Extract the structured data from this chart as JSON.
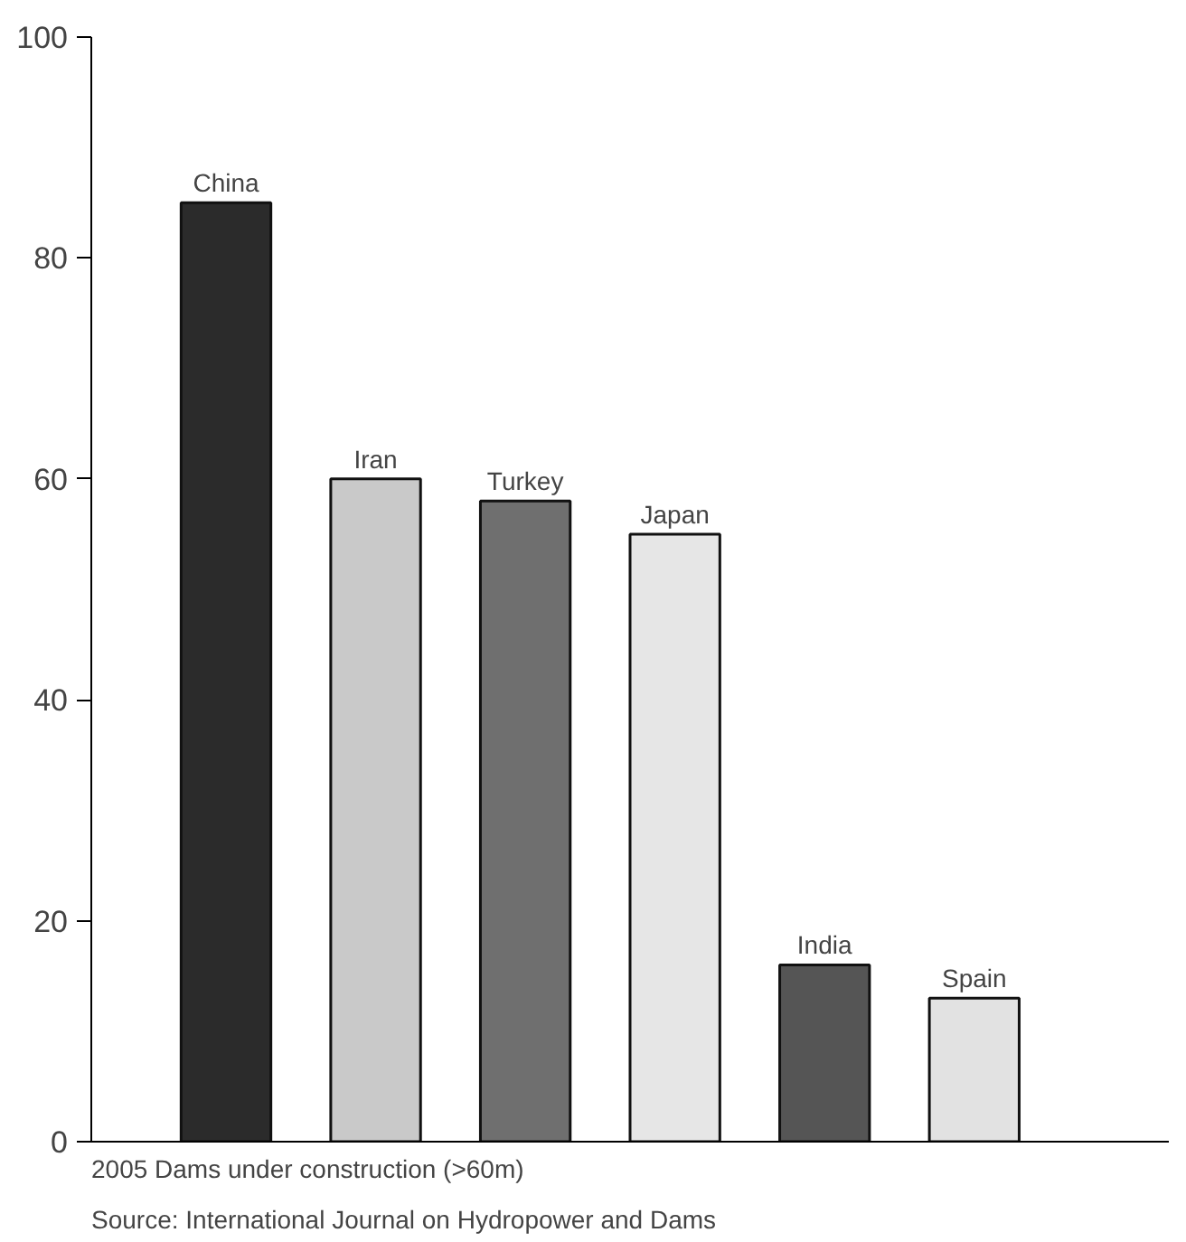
{
  "chart_data": {
    "type": "bar",
    "categories": [
      "China",
      "Iran",
      "Turkey",
      "Japan",
      "India",
      "Spain"
    ],
    "values": [
      85,
      60,
      58,
      55,
      16,
      13
    ],
    "colors": [
      "#2b2b2b",
      "#c9c9c9",
      "#6f6f6f",
      "#e6e6e6",
      "#555555",
      "#e2e2e2"
    ],
    "ylim": [
      0,
      100
    ],
    "yticks": [
      0,
      20,
      40,
      60,
      80,
      100
    ],
    "grid": false,
    "annotations": [
      "2005 Dams under construction (>60m)",
      "Source: International Journal on Hydropower and Dams"
    ]
  }
}
